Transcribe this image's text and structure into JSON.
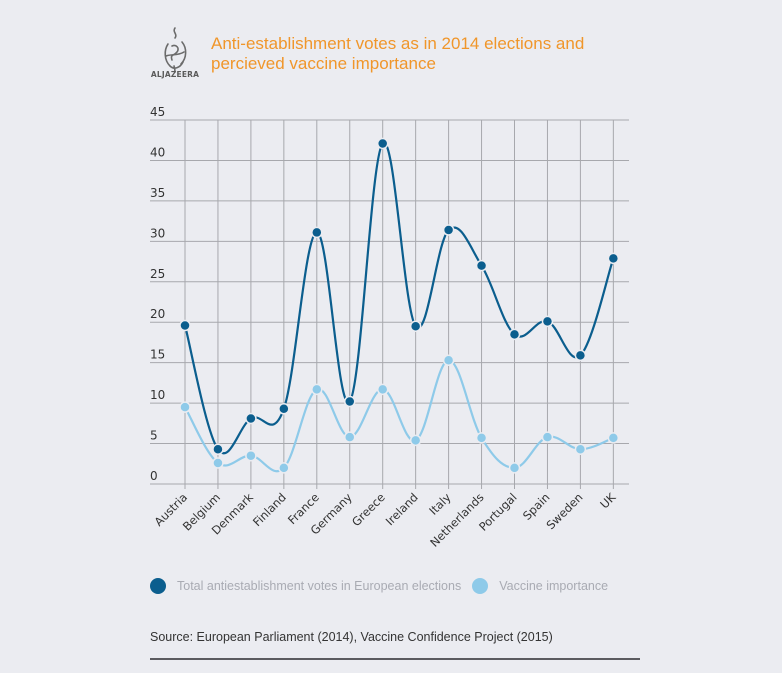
{
  "brand": {
    "logo_text": "ALJAZEERA"
  },
  "chart_data": {
    "type": "line",
    "title": "Anti-establishment votes as in 2014 elections and percieved vaccine importance",
    "xlabel": "",
    "ylabel": "",
    "ylim": [
      0,
      45
    ],
    "yticks": [
      0,
      5,
      10,
      15,
      20,
      25,
      30,
      35,
      40,
      45
    ],
    "grid": true,
    "smooth": true,
    "legend_position": "bottom",
    "categories": [
      "Austria",
      "Belgium",
      "Denmark",
      "Finland",
      "France",
      "Germany",
      "Greece",
      "Ireland",
      "Italy",
      "Netherlands",
      "Portugal",
      "Spain",
      "Sweden",
      "UK"
    ],
    "series": [
      {
        "name": "Total antiestablishment votes in European elections",
        "color": "#0b5e8e",
        "values": [
          19.6,
          4.3,
          8.1,
          9.3,
          31.1,
          10.2,
          42.1,
          19.5,
          31.4,
          27.0,
          18.5,
          20.1,
          15.9,
          27.9
        ]
      },
      {
        "name": "Vaccine importance",
        "color": "#8ecae9",
        "values": [
          9.5,
          2.6,
          3.5,
          2.0,
          11.7,
          5.8,
          11.7,
          5.4,
          15.3,
          5.7,
          2.0,
          5.8,
          4.3,
          5.7
        ]
      }
    ]
  },
  "source": "Source: European Parliament (2014), Vaccine Confidence Project (2015)"
}
